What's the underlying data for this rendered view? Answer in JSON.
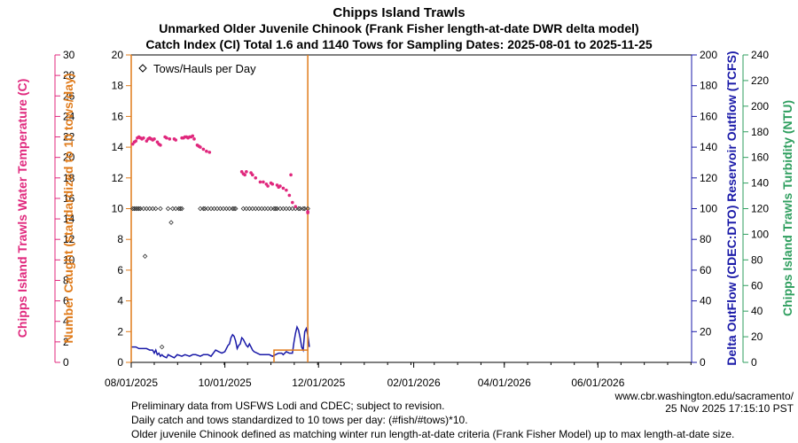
{
  "chart_data": {
    "type": "scatter",
    "title_lines": [
      "Chipps Island Trawls",
      "Unmarked Older Juvenile Chinook (Frank Fisher length-at-date DWR delta model)",
      "Catch Index (CI) Total 1.6 and 1140 Tows for Sampling Dates: 2025-08-01 to 2025-11-25"
    ],
    "legend_label": "Tows/Hauls per Day",
    "legend_position": "top-left",
    "x_axis": {
      "range_days": [
        0,
        365
      ],
      "ticks": [
        {
          "day": 0,
          "label": "08/01/2025"
        },
        {
          "day": 61,
          "label": "10/01/2025"
        },
        {
          "day": 122,
          "label": "12/01/2025"
        },
        {
          "day": 184,
          "label": "02/01/2026"
        },
        {
          "day": 243,
          "label": "04/01/2026"
        },
        {
          "day": 304,
          "label": "06/01/2026"
        }
      ]
    },
    "axes": {
      "temperature": {
        "label": "Chipps Island Trawls Water Temperature (C)",
        "color": "#e0287d",
        "range": [
          0,
          30
        ],
        "ticks": [
          0,
          2,
          4,
          6,
          8,
          10,
          12,
          14,
          16,
          18,
          20,
          22,
          24,
          26,
          28,
          30
        ]
      },
      "catch": {
        "label": "Number Caught (standardized to 10 tows/day)",
        "color": "#e07b1a",
        "range": [
          0,
          20
        ],
        "ticks": [
          0,
          2,
          4,
          6,
          8,
          10,
          12,
          14,
          16,
          18,
          20
        ]
      },
      "outflow": {
        "label": "Delta OutFlow (CDEC:DTO) Reservoir Outflow (TCFS)",
        "color": "#1a1aa8",
        "range": [
          0,
          200
        ],
        "ticks": [
          0,
          20,
          40,
          60,
          80,
          100,
          120,
          140,
          160,
          180,
          200
        ]
      },
      "turbidity": {
        "label": "Chipps Island Trawls Turbidity (NTU)",
        "color": "#2e9e5e",
        "range": [
          0,
          240
        ],
        "ticks": [
          0,
          20,
          40,
          60,
          80,
          100,
          120,
          140,
          160,
          180,
          200,
          220,
          240
        ]
      }
    },
    "temperature_series": {
      "name": "Water Temperature (C)",
      "points": [
        [
          1,
          21.3
        ],
        [
          2,
          21.5
        ],
        [
          3,
          21.6
        ],
        [
          4,
          21.9
        ],
        [
          5,
          22.0
        ],
        [
          6,
          21.9
        ],
        [
          7,
          21.8
        ],
        [
          8,
          21.9
        ],
        [
          10,
          21.6
        ],
        [
          11,
          21.8
        ],
        [
          12,
          21.9
        ],
        [
          13,
          21.8
        ],
        [
          14,
          21.7
        ],
        [
          15,
          21.8
        ],
        [
          17,
          21.5
        ],
        [
          18,
          21.3
        ],
        [
          19,
          21.2
        ],
        [
          22,
          22.0
        ],
        [
          23,
          21.9
        ],
        [
          25,
          21.8
        ],
        [
          28,
          21.8
        ],
        [
          29,
          21.7
        ],
        [
          33,
          21.9
        ],
        [
          34,
          21.9
        ],
        [
          35,
          22.0
        ],
        [
          36,
          22.0
        ],
        [
          37,
          21.9
        ],
        [
          38,
          22.0
        ],
        [
          39,
          22.0
        ],
        [
          40,
          22.1
        ],
        [
          41,
          21.8
        ],
        [
          43,
          21.2
        ],
        [
          44,
          21.1
        ],
        [
          45,
          21.0
        ],
        [
          47,
          20.8
        ],
        [
          49,
          20.6
        ],
        [
          51,
          20.5
        ],
        [
          72,
          18.6
        ],
        [
          73,
          18.4
        ],
        [
          74,
          18.3
        ],
        [
          75,
          18.6
        ],
        [
          78,
          18.5
        ],
        [
          79,
          18.3
        ],
        [
          81,
          18.0
        ],
        [
          84,
          17.6
        ],
        [
          86,
          17.6
        ],
        [
          88,
          17.4
        ],
        [
          89,
          17.2
        ],
        [
          91,
          17.5
        ],
        [
          92,
          17.4
        ],
        [
          95,
          17.3
        ],
        [
          96,
          17.1
        ],
        [
          97,
          17.2
        ],
        [
          99,
          17.0
        ],
        [
          101,
          16.8
        ],
        [
          103,
          16.3
        ],
        [
          104,
          18.3
        ],
        [
          105,
          15.6
        ],
        [
          107,
          15.2
        ],
        [
          115,
          14.6
        ],
        [
          115,
          14.7
        ]
      ]
    },
    "tows_series": {
      "name": "Tows/Hauls per Day",
      "points": [
        [
          1,
          10
        ],
        [
          2,
          10
        ],
        [
          3,
          10
        ],
        [
          4,
          10
        ],
        [
          5,
          10
        ],
        [
          6,
          10
        ],
        [
          8,
          10
        ],
        [
          9,
          6.9
        ],
        [
          10,
          10
        ],
        [
          12,
          10
        ],
        [
          14,
          10
        ],
        [
          16,
          10
        ],
        [
          19,
          10
        ],
        [
          20,
          1.0
        ],
        [
          24,
          10
        ],
        [
          26,
          9.1
        ],
        [
          27,
          10
        ],
        [
          29,
          10
        ],
        [
          31,
          10
        ],
        [
          32,
          10
        ],
        [
          33,
          10
        ],
        [
          45,
          10
        ],
        [
          47,
          10
        ],
        [
          48,
          10
        ],
        [
          50,
          10
        ],
        [
          52,
          10
        ],
        [
          54,
          10
        ],
        [
          56,
          10
        ],
        [
          58,
          10
        ],
        [
          60,
          10
        ],
        [
          62,
          10
        ],
        [
          64,
          10
        ],
        [
          66,
          10
        ],
        [
          67,
          10
        ],
        [
          68,
          10
        ],
        [
          73,
          10
        ],
        [
          75,
          10
        ],
        [
          77,
          10
        ],
        [
          79,
          10
        ],
        [
          81,
          10
        ],
        [
          83,
          10
        ],
        [
          85,
          10
        ],
        [
          87,
          10
        ],
        [
          89,
          10
        ],
        [
          91,
          10
        ],
        [
          93,
          10
        ],
        [
          94,
          10
        ],
        [
          95,
          10
        ],
        [
          97,
          10
        ],
        [
          99,
          10
        ],
        [
          101,
          10
        ],
        [
          103,
          10
        ],
        [
          105,
          10
        ],
        [
          107,
          10
        ],
        [
          109,
          10
        ],
        [
          110,
          10
        ],
        [
          112,
          10
        ],
        [
          113,
          10
        ],
        [
          115,
          10
        ]
      ]
    },
    "outflow_series": {
      "name": "Delta OutFlow (TCFS)",
      "points": [
        [
          0,
          10
        ],
        [
          3,
          10
        ],
        [
          5,
          9
        ],
        [
          10,
          9
        ],
        [
          12,
          8
        ],
        [
          14,
          8
        ],
        [
          15,
          6
        ],
        [
          16,
          8
        ],
        [
          17,
          5
        ],
        [
          18,
          6
        ],
        [
          19,
          4
        ],
        [
          20,
          5
        ],
        [
          21,
          4
        ],
        [
          23,
          3
        ],
        [
          24,
          5
        ],
        [
          26,
          4
        ],
        [
          28,
          3
        ],
        [
          30,
          5
        ],
        [
          33,
          4
        ],
        [
          35,
          5
        ],
        [
          38,
          4
        ],
        [
          40,
          5
        ],
        [
          42,
          5
        ],
        [
          45,
          4
        ],
        [
          47,
          5
        ],
        [
          50,
          5
        ],
        [
          52,
          4
        ],
        [
          55,
          8
        ],
        [
          57,
          7
        ],
        [
          59,
          6
        ],
        [
          61,
          7
        ],
        [
          63,
          11
        ],
        [
          64,
          12
        ],
        [
          65,
          16
        ],
        [
          66,
          18
        ],
        [
          67,
          17
        ],
        [
          68,
          14
        ],
        [
          69,
          9
        ],
        [
          70,
          11
        ],
        [
          71,
          12
        ],
        [
          72,
          16
        ],
        [
          73,
          15
        ],
        [
          74,
          13
        ],
        [
          75,
          11
        ],
        [
          76,
          10
        ],
        [
          77,
          12
        ],
        [
          78,
          10
        ],
        [
          79,
          8
        ],
        [
          80,
          7
        ],
        [
          82,
          6
        ],
        [
          84,
          5
        ],
        [
          86,
          5
        ],
        [
          88,
          5
        ],
        [
          90,
          5
        ],
        [
          92,
          4
        ],
        [
          94,
          5
        ],
        [
          96,
          6
        ],
        [
          98,
          6
        ],
        [
          99,
          5
        ],
        [
          101,
          7
        ],
        [
          103,
          6
        ],
        [
          105,
          6
        ],
        [
          106,
          13
        ],
        [
          107,
          19
        ],
        [
          108,
          23
        ],
        [
          109,
          21
        ],
        [
          110,
          16
        ],
        [
          111,
          10
        ],
        [
          112,
          8
        ],
        [
          113,
          20
        ],
        [
          114,
          22
        ],
        [
          115,
          18
        ],
        [
          116,
          10
        ]
      ]
    },
    "catch_series": {
      "name": "Number Caught (standardized)",
      "points": [
        [
          93,
          0
        ],
        [
          93,
          0.8
        ],
        [
          115,
          0.8
        ]
      ]
    },
    "catch_marker_days": [
      0,
      115
    ]
  },
  "footer": {
    "url": "www.cbr.washington.edu/sacramento/",
    "timestamp": "25 Nov 2025 17:15:10 PST",
    "note1": "Preliminary data from USFWS Lodi and CDEC; subject to revision.",
    "note2": "Daily catch and tows standardized to 10 tows per day: (#fish/#tows)*10.",
    "note3": "Older juvenile Chinook defined as matching winter run length-at-date criteria (Frank Fisher Model) up to max length-at-date size."
  }
}
